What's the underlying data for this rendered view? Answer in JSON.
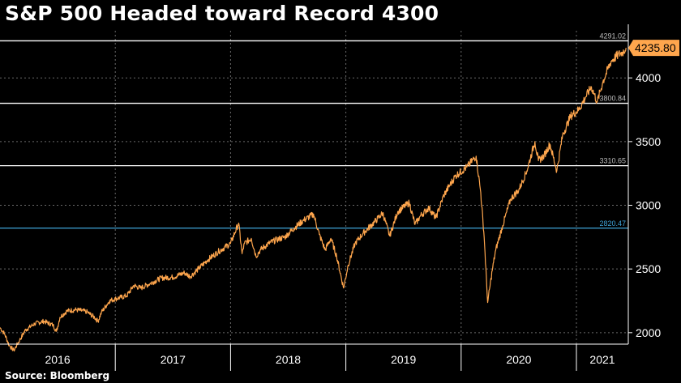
{
  "title": "S&P 500 Headed toward Record 4300",
  "source": "Source: Bloomberg",
  "colors": {
    "background": "#000000",
    "line": "#ffa64d",
    "level_line": "#ffffff",
    "support_line": "#3fa4d9",
    "grid": "#6a6a6a",
    "badge": "#ffa64d"
  },
  "chart_data": {
    "type": "line",
    "title": "S&P 500 Headed toward Record 4300",
    "x_labels": [
      "2016",
      "2017",
      "2018",
      "2019",
      "2020",
      "2021"
    ],
    "y_ticks": [
      "2000",
      "2500",
      "3000",
      "3500",
      "4000"
    ],
    "ylim": [
      1910,
      4370
    ],
    "xlim": [
      2016.0,
      2021.45
    ],
    "grid": true,
    "last_value": "4235.80",
    "levels": [
      {
        "label": "4291.02",
        "value": 4291.02,
        "color": "#ffffff"
      },
      {
        "label": "3800.84",
        "value": 3800.84,
        "color": "#ffffff"
      },
      {
        "label": "3310.65",
        "value": 3310.65,
        "color": "#ffffff"
      },
      {
        "label": "2820.47",
        "value": 2820.47,
        "color": "#3fa4d9"
      }
    ],
    "series": [
      {
        "values": [
          [
            2016.0,
            2040
          ],
          [
            2016.04,
            1990
          ],
          [
            2016.08,
            1900
          ],
          [
            2016.12,
            1860
          ],
          [
            2016.17,
            1940
          ],
          [
            2016.22,
            2020
          ],
          [
            2016.3,
            2070
          ],
          [
            2016.38,
            2090
          ],
          [
            2016.46,
            2060
          ],
          [
            2016.49,
            2010
          ],
          [
            2016.52,
            2120
          ],
          [
            2016.58,
            2170
          ],
          [
            2016.66,
            2180
          ],
          [
            2016.75,
            2165
          ],
          [
            2016.82,
            2120
          ],
          [
            2016.85,
            2090
          ],
          [
            2016.88,
            2160
          ],
          [
            2016.95,
            2250
          ],
          [
            2017.0,
            2265
          ],
          [
            2017.1,
            2290
          ],
          [
            2017.16,
            2370
          ],
          [
            2017.22,
            2350
          ],
          [
            2017.3,
            2385
          ],
          [
            2017.4,
            2430
          ],
          [
            2017.5,
            2435
          ],
          [
            2017.6,
            2470
          ],
          [
            2017.65,
            2440
          ],
          [
            2017.72,
            2500
          ],
          [
            2017.8,
            2570
          ],
          [
            2017.9,
            2640
          ],
          [
            2018.0,
            2700
          ],
          [
            2018.07,
            2860
          ],
          [
            2018.1,
            2620
          ],
          [
            2018.12,
            2700
          ],
          [
            2018.18,
            2740
          ],
          [
            2018.22,
            2600
          ],
          [
            2018.26,
            2650
          ],
          [
            2018.33,
            2700
          ],
          [
            2018.4,
            2730
          ],
          [
            2018.47,
            2750
          ],
          [
            2018.55,
            2820
          ],
          [
            2018.63,
            2880
          ],
          [
            2018.72,
            2930
          ],
          [
            2018.77,
            2770
          ],
          [
            2018.82,
            2650
          ],
          [
            2018.87,
            2740
          ],
          [
            2018.92,
            2600
          ],
          [
            2018.98,
            2351
          ],
          [
            2019.02,
            2530
          ],
          [
            2019.08,
            2700
          ],
          [
            2019.15,
            2780
          ],
          [
            2019.25,
            2870
          ],
          [
            2019.32,
            2940
          ],
          [
            2019.38,
            2760
          ],
          [
            2019.45,
            2950
          ],
          [
            2019.55,
            3020
          ],
          [
            2019.6,
            2850
          ],
          [
            2019.65,
            2920
          ],
          [
            2019.72,
            2980
          ],
          [
            2019.78,
            2900
          ],
          [
            2019.85,
            3080
          ],
          [
            2019.95,
            3230
          ],
          [
            2020.05,
            3300
          ],
          [
            2020.13,
            3386
          ],
          [
            2020.17,
            3100
          ],
          [
            2020.2,
            2750
          ],
          [
            2020.23,
            2237
          ],
          [
            2020.27,
            2490
          ],
          [
            2020.3,
            2650
          ],
          [
            2020.36,
            2840
          ],
          [
            2020.43,
            3050
          ],
          [
            2020.5,
            3120
          ],
          [
            2020.57,
            3270
          ],
          [
            2020.64,
            3500
          ],
          [
            2020.67,
            3350
          ],
          [
            2020.72,
            3390
          ],
          [
            2020.77,
            3480
          ],
          [
            2020.83,
            3270
          ],
          [
            2020.88,
            3550
          ],
          [
            2020.95,
            3700
          ],
          [
            2021.02,
            3750
          ],
          [
            2021.08,
            3850
          ],
          [
            2021.13,
            3930
          ],
          [
            2021.18,
            3810
          ],
          [
            2021.23,
            3970
          ],
          [
            2021.3,
            4130
          ],
          [
            2021.36,
            4180
          ],
          [
            2021.4,
            4200
          ],
          [
            2021.43,
            4235.8
          ]
        ]
      }
    ]
  }
}
